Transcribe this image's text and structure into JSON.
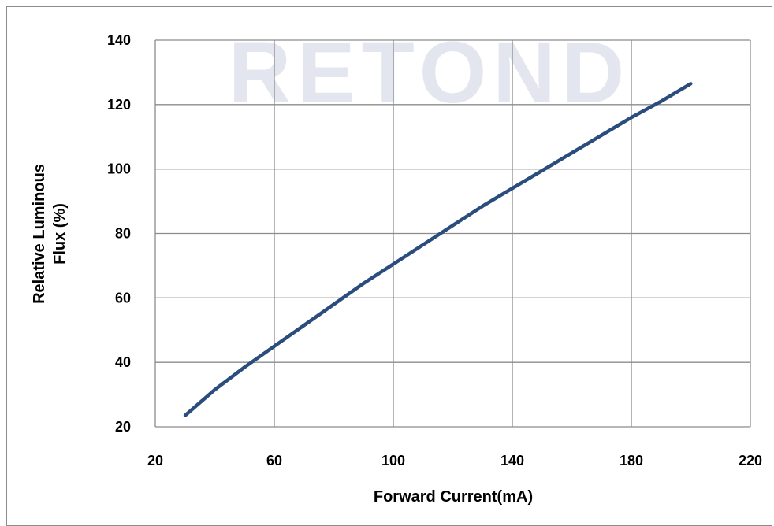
{
  "chart_data": {
    "type": "line",
    "title": "",
    "xlabel": "Forward Current(mA)",
    "ylabel_lines": [
      "Relative Luminous",
      "Flux (%)"
    ],
    "xlim": [
      20,
      220
    ],
    "ylim": [
      20,
      140
    ],
    "x_ticks": [
      20,
      60,
      100,
      140,
      180,
      220
    ],
    "y_ticks": [
      20,
      40,
      60,
      80,
      100,
      120,
      140
    ],
    "grid": true,
    "line_color": "#2b4d7d",
    "watermark_text": "RETOND",
    "series": [
      {
        "x": [
          30,
          40,
          50,
          60,
          70,
          80,
          90,
          100,
          110,
          120,
          130,
          140,
          150,
          160,
          170,
          180,
          190,
          200
        ],
        "values": [
          23.5,
          31.5,
          38.5,
          45.0,
          51.5,
          58.0,
          64.5,
          70.5,
          76.5,
          82.5,
          88.5,
          94.0,
          99.5,
          105.0,
          110.5,
          116.0,
          121.0,
          126.5
        ]
      }
    ]
  }
}
